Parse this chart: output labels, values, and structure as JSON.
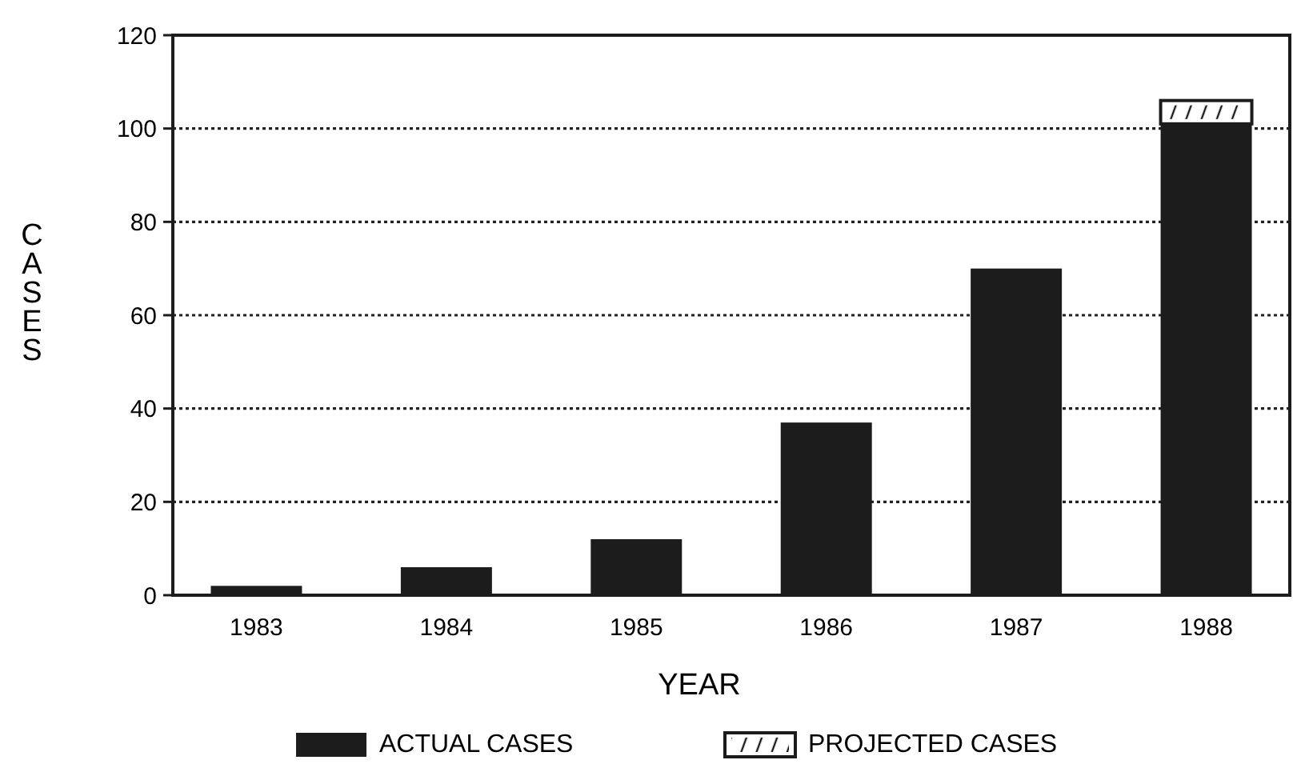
{
  "chart_data": {
    "type": "bar",
    "stacked": true,
    "xlabel": "YEAR",
    "ylabel": "CASES",
    "categories": [
      "1983",
      "1984",
      "1985",
      "1986",
      "1987",
      "1988"
    ],
    "series": [
      {
        "name": "ACTUAL CASES",
        "color": "#1c1c1c",
        "values": [
          2,
          6,
          12,
          37,
          70,
          101
        ]
      },
      {
        "name": "PROJECTED CASES",
        "color": "#ffffff",
        "values": [
          null,
          null,
          null,
          null,
          null,
          5
        ]
      }
    ],
    "ylim": [
      0,
      120
    ],
    "yticks": [
      0,
      20,
      40,
      60,
      80,
      100,
      120
    ],
    "grid": "y",
    "legend": "bottom"
  }
}
